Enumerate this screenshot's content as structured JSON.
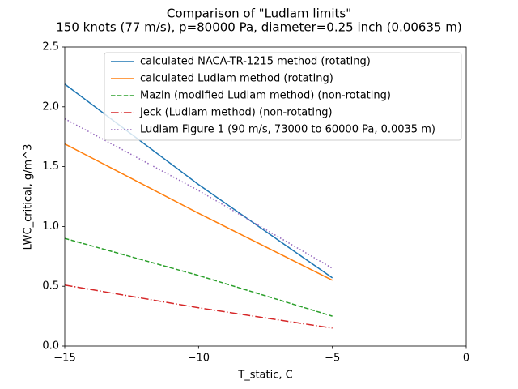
{
  "chart_data": {
    "type": "line",
    "title": "Comparison of \"Ludlam limits\"",
    "subtitle": "150 knots (77 m/s), p=80000 Pa, diameter=0.25 inch (0.00635 m)",
    "x_label": "T_static, C",
    "y_label": "LWC_critical, g/m^3",
    "x": [
      -15,
      -10,
      -5
    ],
    "series": [
      {
        "name": "calculated NACA-TR-1215 method (rotating)",
        "color": "#1f77b4",
        "dash": "solid",
        "values": [
          2.19,
          1.35,
          0.57
        ]
      },
      {
        "name": "calculated Ludlam method (rotating)",
        "color": "#ff7f0e",
        "dash": "solid",
        "values": [
          1.69,
          1.11,
          0.55
        ]
      },
      {
        "name": "Mazin (modified Ludlam method) (non-rotating)",
        "color": "#2ca02c",
        "dash": "dashed",
        "values": [
          0.9,
          0.59,
          0.25
        ]
      },
      {
        "name": "Jeck (Ludlam method) (non-rotating)",
        "color": "#d62728",
        "dash": "dashdot",
        "values": [
          0.51,
          0.32,
          0.15
        ]
      },
      {
        "name": "Ludlam Figure 1 (90 m/s, 73000 to 60000 Pa, 0.0035 m)",
        "color": "#9467bd",
        "dash": "dotted",
        "values": [
          1.9,
          1.3,
          0.65
        ]
      }
    ],
    "xlim": [
      -15,
      0
    ],
    "xticks": [
      {
        "value": -15,
        "label": "−15"
      },
      {
        "value": -10,
        "label": "−10"
      },
      {
        "value": -5,
        "label": "−5"
      },
      0
    ],
    "ylim": [
      0,
      2.5
    ],
    "yticks": [
      {
        "value": 0,
        "label": "0.0"
      },
      0.5,
      {
        "value": 1,
        "label": "1.0"
      },
      1.5,
      {
        "value": 2,
        "label": "2.0"
      },
      2.5
    ],
    "grid": false,
    "legend": "upper right"
  }
}
